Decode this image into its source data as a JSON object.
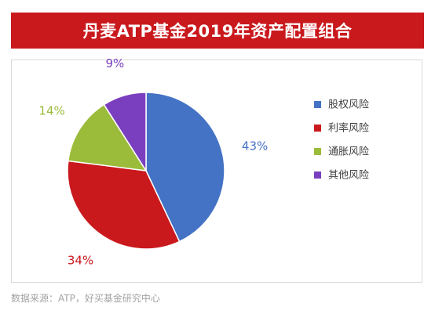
{
  "title": "丹麦ATP基金2019年资产配置组合",
  "source": "数据来源：ATP，好买基金研究中心",
  "chart_data": {
    "type": "pie",
    "title": "丹麦ATP基金2019年资产配置组合",
    "legend_position": "right",
    "slices": [
      {
        "name": "股权风险",
        "value": 43,
        "label": "43%",
        "color": "#4472c4"
      },
      {
        "name": "利率风险",
        "value": 34,
        "label": "34%",
        "color": "#c9191d"
      },
      {
        "name": "通胀风险",
        "value": 14,
        "label": "14%",
        "color": "#9bbb3b"
      },
      {
        "name": "其他风险",
        "value": 9,
        "label": "9%",
        "color": "#7a3fbf"
      }
    ]
  }
}
